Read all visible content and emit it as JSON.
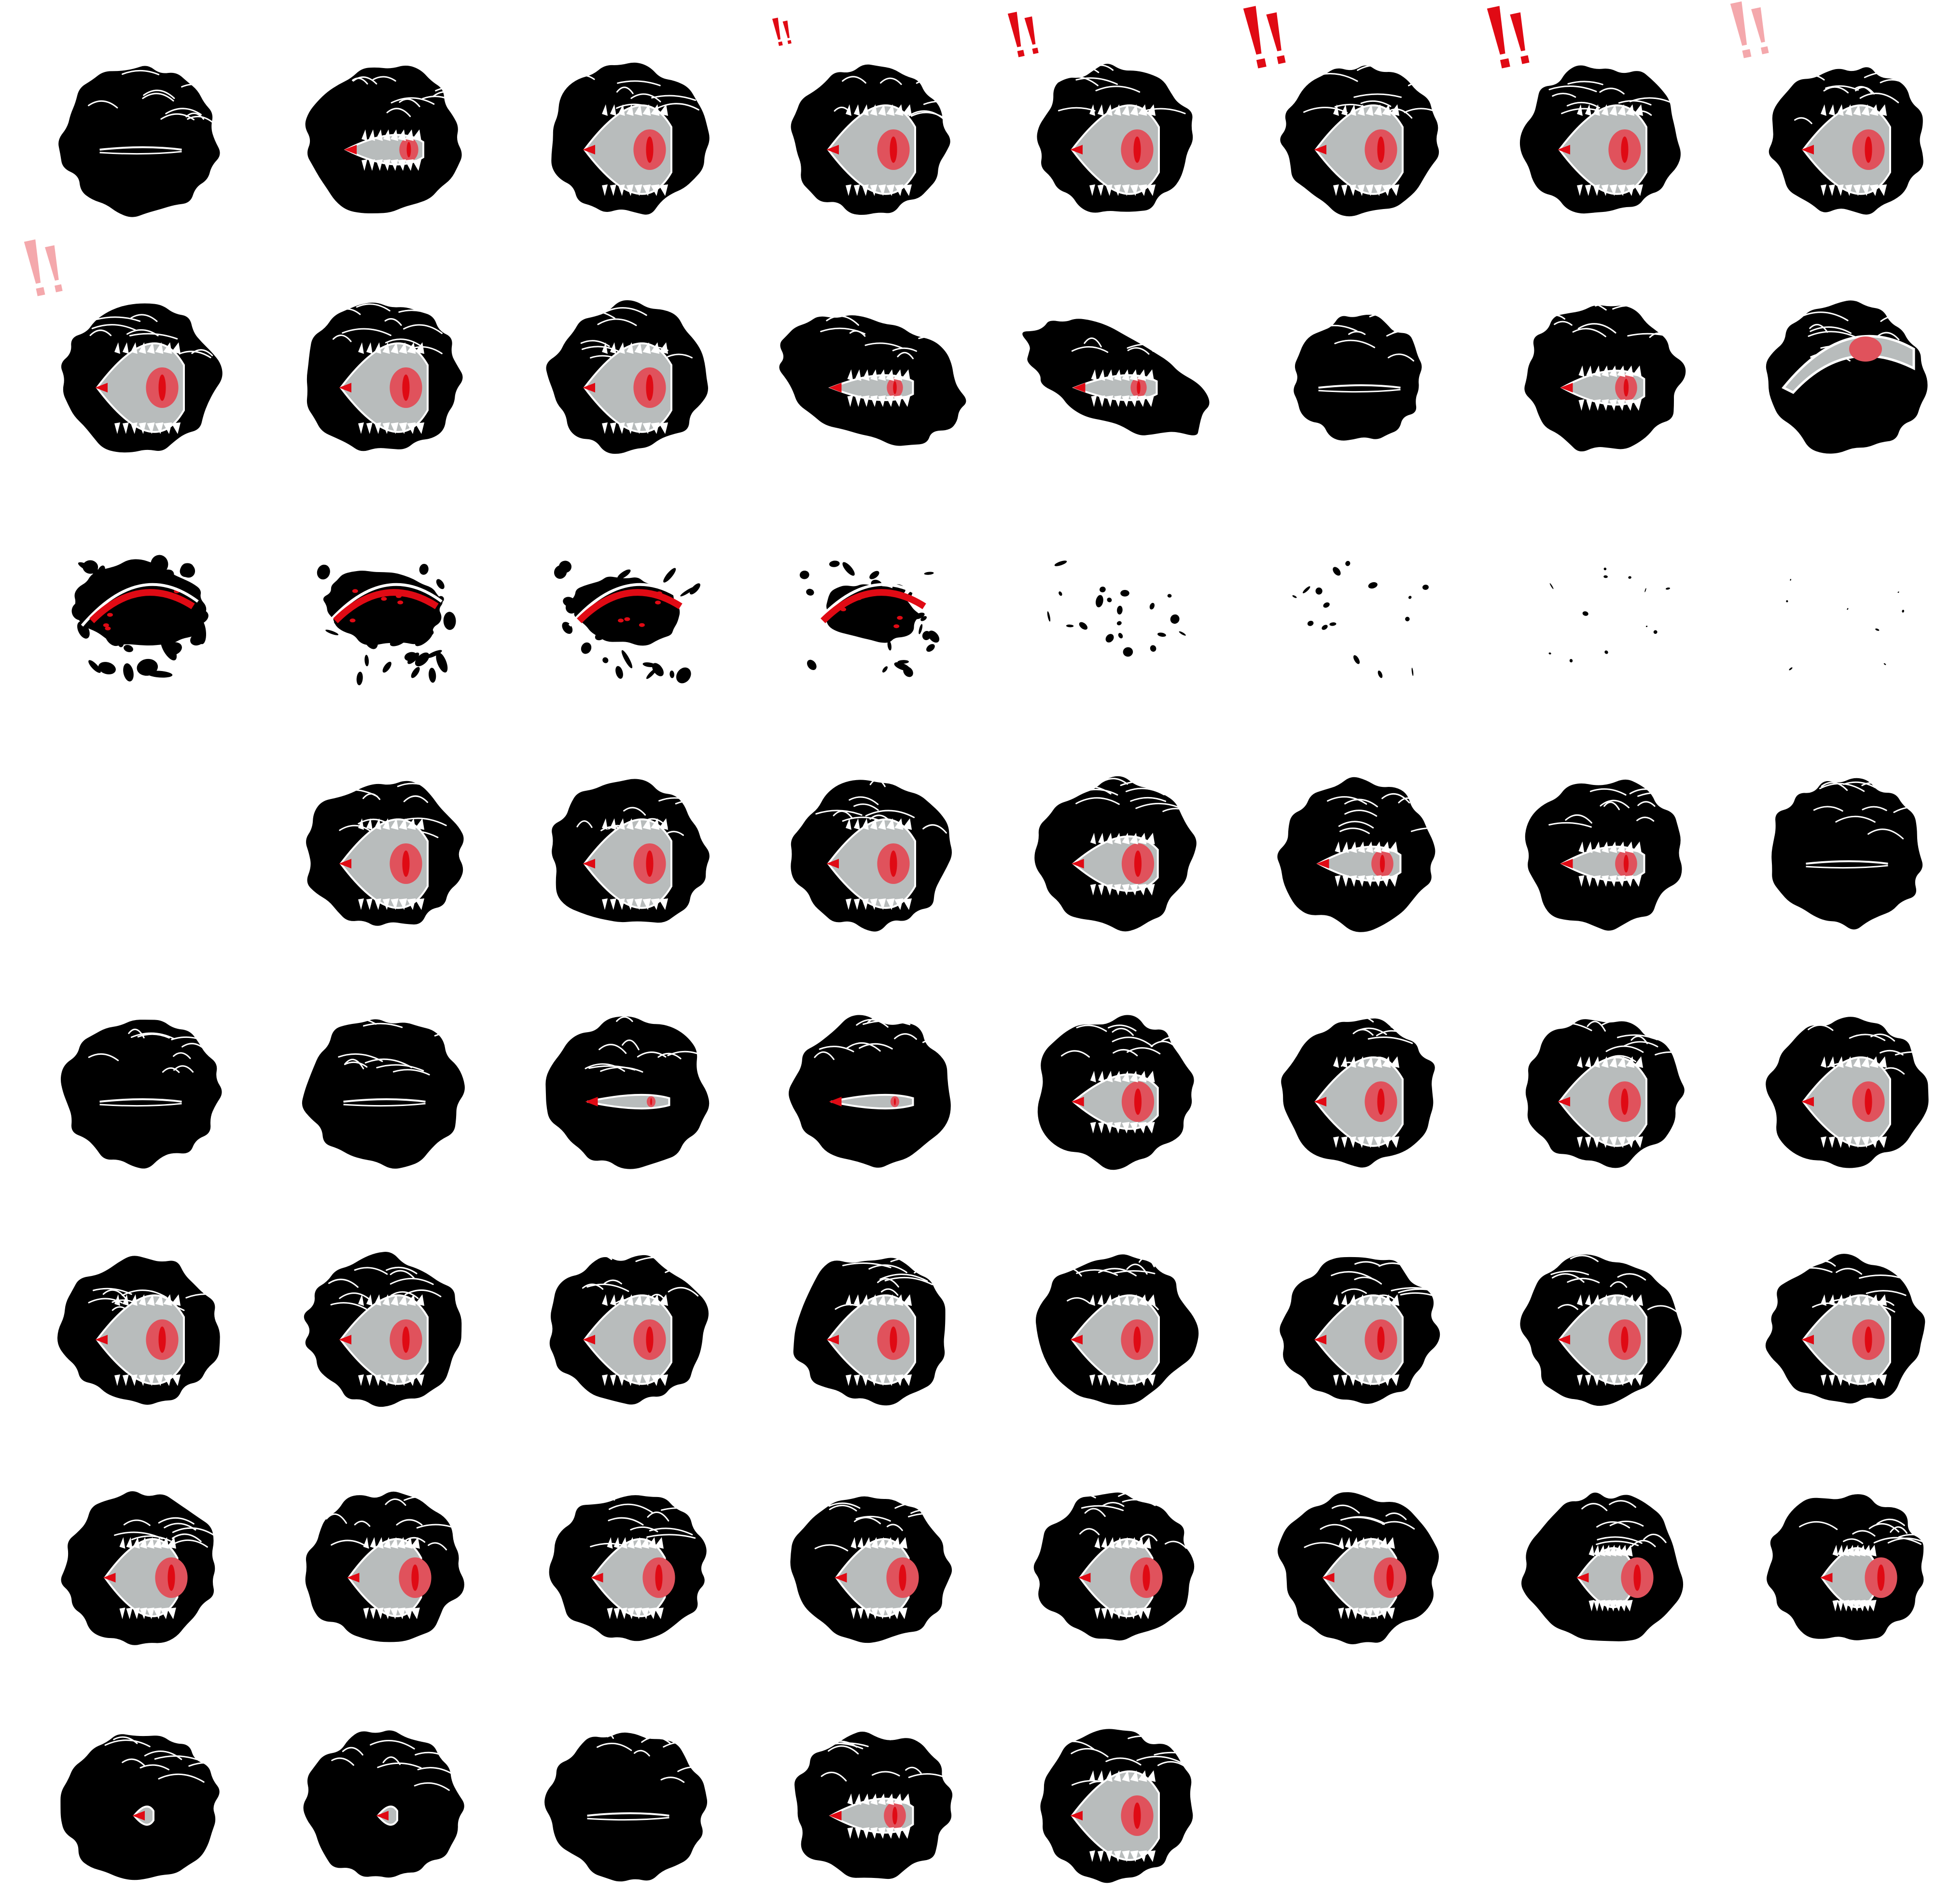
{
  "sheet": {
    "kind": "sprite-sheet",
    "columns": 8,
    "rows": 8,
    "frame_count": 61,
    "background": "#ffffff"
  },
  "palette": {
    "body": "#000000",
    "eye_white": "#b8bcbc",
    "iris": "#e0525c",
    "pupil": "#e00a14",
    "highlight": "#ffffff",
    "alert": "#e00a14"
  },
  "frames": [
    {
      "eye": "closed"
    },
    {
      "eye": "opening"
    },
    {
      "eye": "open"
    },
    {
      "eye": "open",
      "alert": "small"
    },
    {
      "eye": "open",
      "alert": "medium"
    },
    {
      "eye": "open",
      "alert": "large"
    },
    {
      "eye": "open",
      "alert": "large"
    },
    {
      "eye": "open",
      "alert": "fading"
    },
    {
      "eye": "open",
      "alert": "fading"
    },
    {
      "eye": "open"
    },
    {
      "eye": "open"
    },
    {
      "eye": "squash",
      "body_shape": "stretched"
    },
    {
      "eye": "squash",
      "body_shape": "flattened"
    },
    {
      "eye": "closed",
      "body_shape": "small"
    },
    {
      "eye": "half"
    },
    {
      "eye": "split"
    },
    {
      "eye": "split",
      "dissolve": 1
    },
    {
      "eye": "split",
      "dissolve": 2
    },
    {
      "eye": "split",
      "dissolve": 3
    },
    {
      "eye": "split",
      "dissolve": 4
    },
    {
      "eye": "none",
      "dissolve": 5
    },
    {
      "eye": "none",
      "dissolve": 6
    },
    {
      "eye": "none",
      "dissolve": 7
    },
    {
      "eye": "none",
      "dissolve": 8
    },
    {
      "eye": "empty"
    },
    {
      "eye": "open"
    },
    {
      "eye": "open"
    },
    {
      "eye": "open"
    },
    {
      "eye": "narrow"
    },
    {
      "eye": "half"
    },
    {
      "eye": "half"
    },
    {
      "eye": "closed"
    },
    {
      "eye": "closed"
    },
    {
      "eye": "closed"
    },
    {
      "eye": "slit"
    },
    {
      "eye": "slit"
    },
    {
      "eye": "narrow"
    },
    {
      "eye": "open"
    },
    {
      "eye": "open"
    },
    {
      "eye": "open"
    },
    {
      "eye": "open"
    },
    {
      "eye": "open"
    },
    {
      "eye": "open"
    },
    {
      "eye": "open"
    },
    {
      "eye": "open"
    },
    {
      "eye": "open"
    },
    {
      "eye": "open"
    },
    {
      "eye": "open"
    },
    {
      "eye": "side"
    },
    {
      "eye": "side"
    },
    {
      "eye": "side"
    },
    {
      "eye": "side"
    },
    {
      "eye": "side"
    },
    {
      "eye": "side"
    },
    {
      "eye": "edge"
    },
    {
      "eye": "edge"
    },
    {
      "eye": "tiny"
    },
    {
      "eye": "tiny"
    },
    {
      "eye": "closed"
    },
    {
      "eye": "half"
    },
    {
      "eye": "open"
    }
  ]
}
